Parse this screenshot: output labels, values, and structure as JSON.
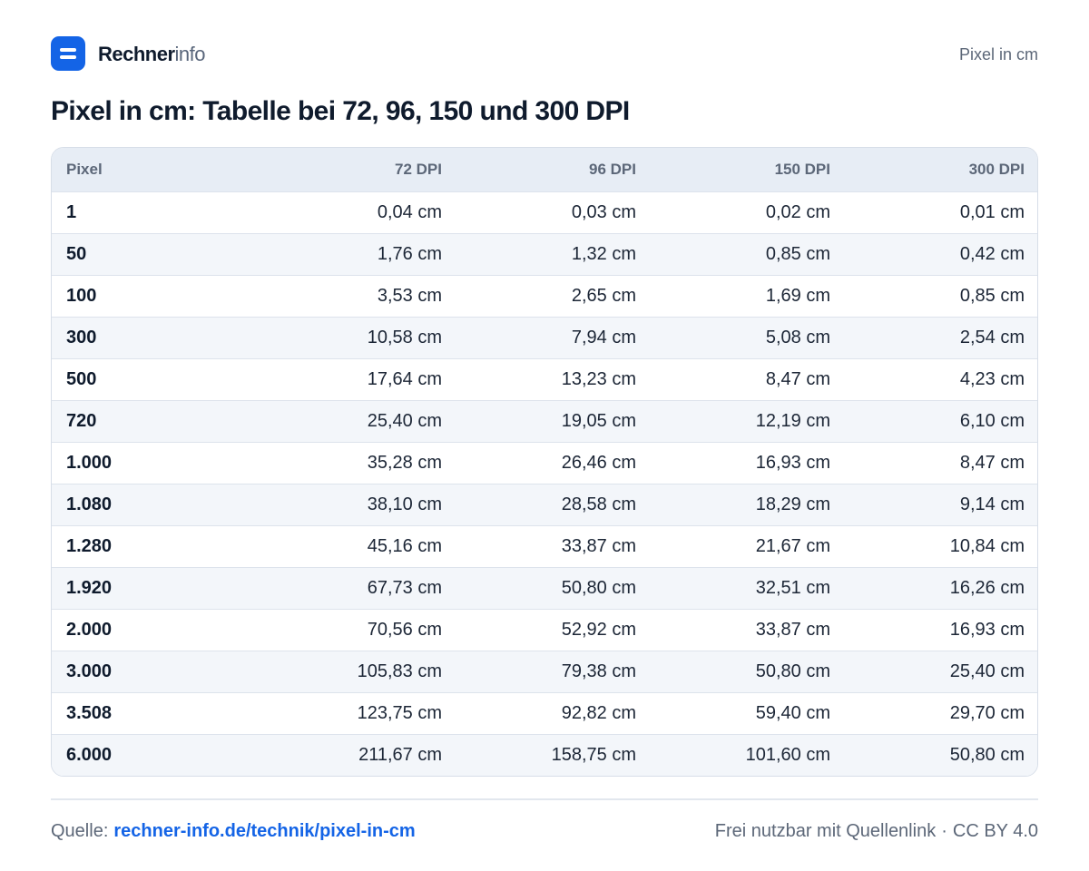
{
  "header": {
    "brand_bold": "Rechner",
    "brand_light": "info",
    "page_link": "Pixel in cm"
  },
  "title": "Pixel in cm: Tabelle bei 72, 96, 150 und 300 DPI",
  "table": {
    "columns": [
      "Pixel",
      "72 DPI",
      "96 DPI",
      "150 DPI",
      "300 DPI"
    ],
    "rows": [
      [
        "1",
        "0,04 cm",
        "0,03 cm",
        "0,02 cm",
        "0,01 cm"
      ],
      [
        "50",
        "1,76 cm",
        "1,32 cm",
        "0,85 cm",
        "0,42 cm"
      ],
      [
        "100",
        "3,53 cm",
        "2,65 cm",
        "1,69 cm",
        "0,85 cm"
      ],
      [
        "300",
        "10,58 cm",
        "7,94 cm",
        "5,08 cm",
        "2,54 cm"
      ],
      [
        "500",
        "17,64 cm",
        "13,23 cm",
        "8,47 cm",
        "4,23 cm"
      ],
      [
        "720",
        "25,40 cm",
        "19,05 cm",
        "12,19 cm",
        "6,10 cm"
      ],
      [
        "1.000",
        "35,28 cm",
        "26,46 cm",
        "16,93 cm",
        "8,47 cm"
      ],
      [
        "1.080",
        "38,10 cm",
        "28,58 cm",
        "18,29 cm",
        "9,14 cm"
      ],
      [
        "1.280",
        "45,16 cm",
        "33,87 cm",
        "21,67 cm",
        "10,84 cm"
      ],
      [
        "1.920",
        "67,73 cm",
        "50,80 cm",
        "32,51 cm",
        "16,26 cm"
      ],
      [
        "2.000",
        "70,56 cm",
        "52,92 cm",
        "33,87 cm",
        "16,93 cm"
      ],
      [
        "3.000",
        "105,83 cm",
        "79,38 cm",
        "50,80 cm",
        "25,40 cm"
      ],
      [
        "3.508",
        "123,75 cm",
        "92,82 cm",
        "59,40 cm",
        "29,70 cm"
      ],
      [
        "6.000",
        "211,67 cm",
        "158,75 cm",
        "101,60 cm",
        "50,80 cm"
      ]
    ]
  },
  "footer": {
    "source_label": "Quelle:",
    "source_link": "rechner-info.de/technik/pixel-in-cm",
    "usage": "Frei nutzbar mit Quellenlink",
    "separator": "·",
    "license": "CC BY 4.0"
  },
  "colors": {
    "brand_blue": "#1464e6",
    "header_row_bg": "#e7edf5",
    "alt_row_bg": "#f3f6fa"
  }
}
